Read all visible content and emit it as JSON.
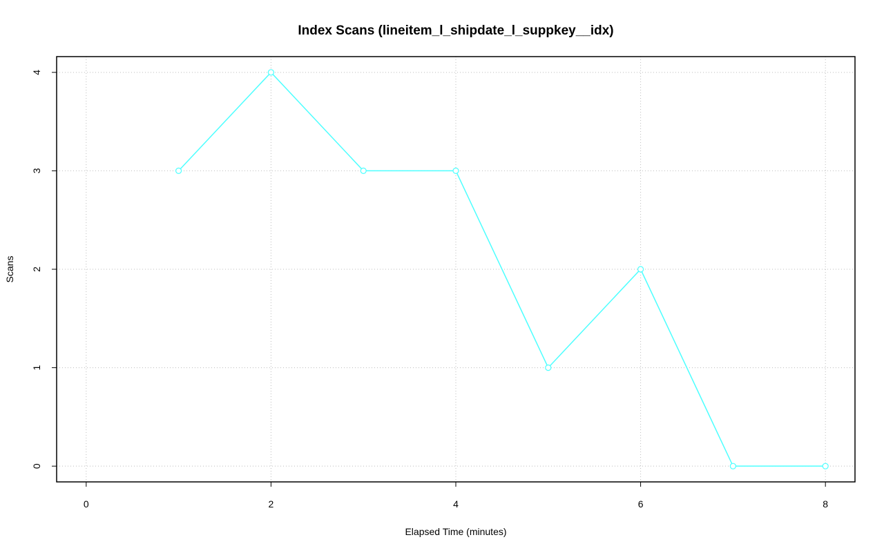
{
  "chart_data": {
    "type": "line",
    "title": "Index Scans (lineitem_l_shipdate_l_suppkey__idx)",
    "x_label": "Elapsed Time (minutes)",
    "y_label": "Scans",
    "x": [
      1,
      2,
      3,
      4,
      5,
      6,
      7,
      8
    ],
    "series": [
      {
        "color": "#4dffff",
        "values": [
          3,
          4,
          3,
          3,
          1,
          2,
          0,
          0
        ]
      }
    ],
    "xlim": [
      -0.32,
      8.32
    ],
    "xticks": [
      0,
      2,
      4,
      6,
      8
    ],
    "ylim": [
      -0.16,
      4.16
    ],
    "yticks": [
      0,
      1,
      2,
      3,
      4
    ],
    "grid": true
  }
}
